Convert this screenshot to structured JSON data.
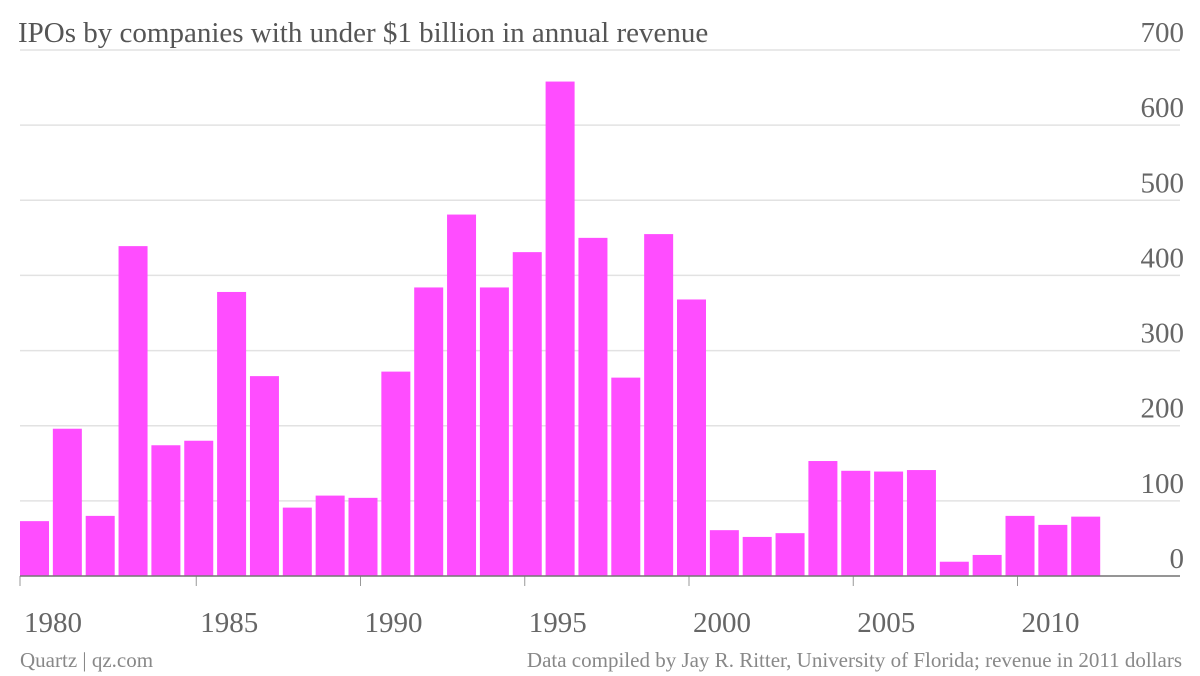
{
  "chart_data": {
    "type": "bar",
    "title": "IPOs by companies with under $1 billion in annual revenue",
    "credit": "Quartz | qz.com",
    "source": "Data compiled by Jay R. Ritter, University of Florida; revenue in 2011 dollars",
    "categories": [
      "1980",
      null,
      null,
      null,
      null,
      "1985",
      null,
      null,
      null,
      null,
      "1990",
      null,
      null,
      null,
      null,
      "1995",
      null,
      null,
      null,
      null,
      "2000",
      null,
      null,
      null,
      null,
      "2005",
      null,
      null,
      null,
      null,
      "2010",
      null,
      null
    ],
    "values": [
      73,
      196,
      80,
      439,
      174,
      180,
      378,
      266,
      91,
      107,
      104,
      272,
      384,
      481,
      384,
      431,
      658,
      450,
      264,
      455,
      368,
      61,
      52,
      57,
      153,
      140,
      139,
      141,
      19,
      28,
      80,
      68,
      79
    ],
    "color": "#ff4dff",
    "ylim": [
      0,
      700
    ],
    "yticks": [
      0,
      100,
      200,
      300,
      400,
      500,
      600,
      700
    ],
    "grid": true
  }
}
